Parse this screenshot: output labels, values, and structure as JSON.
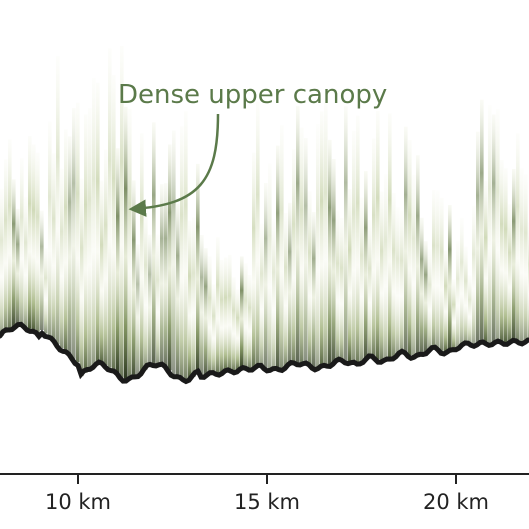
{
  "chart_data": {
    "type": "heatmap",
    "title": "",
    "xlabel": "",
    "ylabel": "",
    "x_unit": "km",
    "x_range": [
      8,
      22
    ],
    "x_ticks": [
      {
        "value": 10,
        "label": "10 km"
      },
      {
        "value": 15,
        "label": "15 km"
      },
      {
        "value": 20,
        "label": "20 km"
      }
    ],
    "annotation": {
      "text": "Dense upper canopy",
      "target_km": 11.4,
      "color": "#5b7a4a"
    },
    "colors": {
      "canopy_light": "#e4e8cf",
      "canopy_mid": "#93a765",
      "canopy_dark": "#3a4a26",
      "ground": "#1a1a1a",
      "axis": "#222222"
    },
    "grid": false,
    "legend": "none"
  }
}
